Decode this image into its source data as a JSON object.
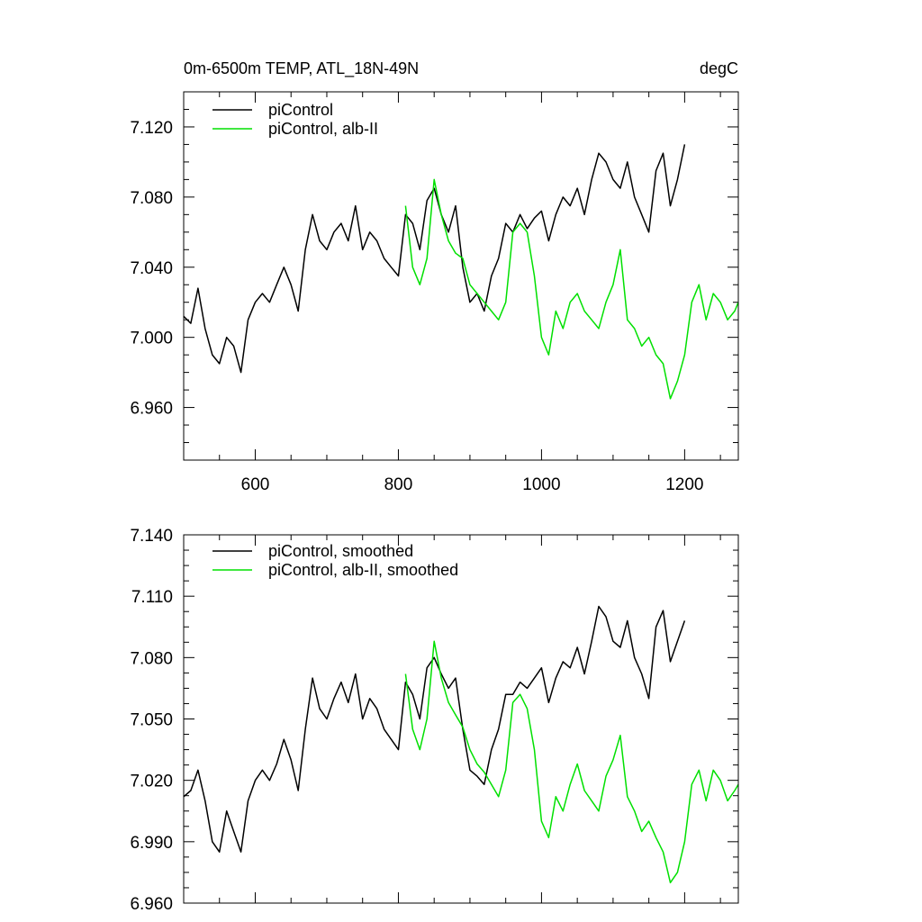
{
  "colors": {
    "black_series": "#000000",
    "green_series": "#00e000",
    "background": "#ffffff"
  },
  "chart_data": [
    {
      "type": "line",
      "title": "0m-6500m TEMP, ATL_18N-49N",
      "units": "degC",
      "xlim": [
        500,
        1275
      ],
      "ylim": [
        6.93,
        7.14
      ],
      "xticks": [
        600,
        800,
        1000,
        1200
      ],
      "xtick_labels": [
        "600",
        "800",
        "1000",
        "1200"
      ],
      "yticks": [
        6.96,
        7.0,
        7.04,
        7.08,
        7.12
      ],
      "ytick_labels": [
        "6.960",
        "7.000",
        "7.040",
        "7.080",
        "7.120"
      ],
      "legend_position": "top-left",
      "series": [
        {
          "name": "piControl",
          "color": "#000000",
          "x": [
            500,
            510,
            520,
            530,
            540,
            550,
            560,
            570,
            580,
            590,
            600,
            610,
            620,
            630,
            640,
            650,
            660,
            670,
            680,
            690,
            700,
            710,
            720,
            730,
            740,
            750,
            760,
            770,
            780,
            790,
            800,
            810,
            820,
            830,
            840,
            850,
            860,
            870,
            880,
            890,
            900,
            910,
            920,
            930,
            940,
            950,
            960,
            970,
            980,
            990,
            1000,
            1010,
            1020,
            1030,
            1040,
            1050,
            1060,
            1070,
            1080,
            1090,
            1100,
            1110,
            1120,
            1130,
            1140,
            1150,
            1160,
            1170,
            1180,
            1190,
            1200
          ],
          "y": [
            7.012,
            7.008,
            7.028,
            7.005,
            6.99,
            6.985,
            7.0,
            6.995,
            6.98,
            7.01,
            7.02,
            7.025,
            7.02,
            7.03,
            7.04,
            7.03,
            7.015,
            7.05,
            7.07,
            7.055,
            7.05,
            7.06,
            7.065,
            7.055,
            7.075,
            7.05,
            7.06,
            7.055,
            7.045,
            7.04,
            7.035,
            7.07,
            7.065,
            7.05,
            7.078,
            7.085,
            7.07,
            7.06,
            7.075,
            7.04,
            7.02,
            7.025,
            7.015,
            7.035,
            7.045,
            7.065,
            7.06,
            7.07,
            7.062,
            7.068,
            7.072,
            7.055,
            7.07,
            7.08,
            7.075,
            7.085,
            7.07,
            7.09,
            7.105,
            7.1,
            7.09,
            7.085,
            7.1,
            7.08,
            7.07,
            7.06,
            7.095,
            7.105,
            7.075,
            7.09,
            7.11
          ]
        },
        {
          "name": "piControl, alb-II",
          "color": "#00e000",
          "x": [
            810,
            820,
            830,
            840,
            850,
            860,
            870,
            880,
            890,
            900,
            910,
            920,
            930,
            940,
            950,
            960,
            970,
            980,
            990,
            1000,
            1010,
            1020,
            1030,
            1040,
            1050,
            1060,
            1070,
            1080,
            1090,
            1100,
            1110,
            1120,
            1130,
            1140,
            1150,
            1160,
            1170,
            1180,
            1190,
            1200,
            1210,
            1220,
            1230,
            1240,
            1250,
            1260,
            1270,
            1275
          ],
          "y": [
            7.075,
            7.04,
            7.03,
            7.045,
            7.09,
            7.07,
            7.055,
            7.048,
            7.045,
            7.03,
            7.025,
            7.02,
            7.015,
            7.01,
            7.02,
            7.06,
            7.065,
            7.06,
            7.035,
            7.0,
            6.99,
            7.015,
            7.005,
            7.02,
            7.025,
            7.015,
            7.01,
            7.005,
            7.02,
            7.03,
            7.05,
            7.01,
            7.005,
            6.995,
            7.0,
            6.99,
            6.985,
            6.965,
            6.975,
            6.99,
            7.02,
            7.03,
            7.01,
            7.025,
            7.02,
            7.01,
            7.015,
            7.02
          ]
        }
      ]
    },
    {
      "type": "line",
      "xlim": [
        500,
        1275
      ],
      "ylim": [
        6.96,
        7.14
      ],
      "xticks": [
        600,
        800,
        1000,
        1200
      ],
      "yticks": [
        6.96,
        6.99,
        7.02,
        7.05,
        7.08,
        7.11,
        7.14
      ],
      "ytick_labels": [
        "6.960",
        "6.990",
        "7.020",
        "7.050",
        "7.080",
        "7.110",
        "7.140"
      ],
      "legend_position": "top-left",
      "series": [
        {
          "name": "piControl, smoothed",
          "color": "#000000",
          "x": [
            500,
            510,
            520,
            530,
            540,
            550,
            560,
            570,
            580,
            590,
            600,
            610,
            620,
            630,
            640,
            650,
            660,
            670,
            680,
            690,
            700,
            710,
            720,
            730,
            740,
            750,
            760,
            770,
            780,
            790,
            800,
            810,
            820,
            830,
            840,
            850,
            860,
            870,
            880,
            890,
            900,
            910,
            920,
            930,
            940,
            950,
            960,
            970,
            980,
            990,
            1000,
            1010,
            1020,
            1030,
            1040,
            1050,
            1060,
            1070,
            1080,
            1090,
            1100,
            1110,
            1120,
            1130,
            1140,
            1150,
            1160,
            1170,
            1180,
            1190,
            1200
          ],
          "y": [
            7.012,
            7.015,
            7.025,
            7.01,
            6.99,
            6.985,
            7.005,
            6.995,
            6.985,
            7.01,
            7.02,
            7.025,
            7.02,
            7.028,
            7.04,
            7.03,
            7.015,
            7.045,
            7.07,
            7.055,
            7.05,
            7.06,
            7.068,
            7.058,
            7.072,
            7.05,
            7.06,
            7.055,
            7.045,
            7.04,
            7.035,
            7.068,
            7.062,
            7.05,
            7.075,
            7.08,
            7.072,
            7.065,
            7.07,
            7.045,
            7.025,
            7.022,
            7.018,
            7.035,
            7.045,
            7.062,
            7.062,
            7.068,
            7.065,
            7.07,
            7.075,
            7.058,
            7.07,
            7.078,
            7.075,
            7.085,
            7.072,
            7.088,
            7.105,
            7.1,
            7.088,
            7.085,
            7.098,
            7.08,
            7.072,
            7.06,
            7.095,
            7.103,
            7.078,
            7.088,
            7.098
          ]
        },
        {
          "name": "piControl, alb-II, smoothed",
          "color": "#00e000",
          "x": [
            810,
            820,
            830,
            840,
            850,
            860,
            870,
            880,
            890,
            900,
            910,
            920,
            930,
            940,
            950,
            960,
            970,
            980,
            990,
            1000,
            1010,
            1020,
            1030,
            1040,
            1050,
            1060,
            1070,
            1080,
            1090,
            1100,
            1110,
            1120,
            1130,
            1140,
            1150,
            1160,
            1170,
            1180,
            1190,
            1200,
            1210,
            1220,
            1230,
            1240,
            1250,
            1260,
            1270,
            1275
          ],
          "y": [
            7.072,
            7.045,
            7.035,
            7.05,
            7.088,
            7.07,
            7.058,
            7.052,
            7.046,
            7.035,
            7.028,
            7.024,
            7.018,
            7.012,
            7.025,
            7.058,
            7.062,
            7.055,
            7.035,
            7.0,
            6.992,
            7.012,
            7.005,
            7.018,
            7.028,
            7.015,
            7.01,
            7.005,
            7.022,
            7.03,
            7.042,
            7.012,
            7.005,
            6.995,
            7.0,
            6.992,
            6.985,
            6.97,
            6.975,
            6.99,
            7.018,
            7.025,
            7.01,
            7.025,
            7.02,
            7.01,
            7.015,
            7.018
          ]
        }
      ]
    }
  ]
}
